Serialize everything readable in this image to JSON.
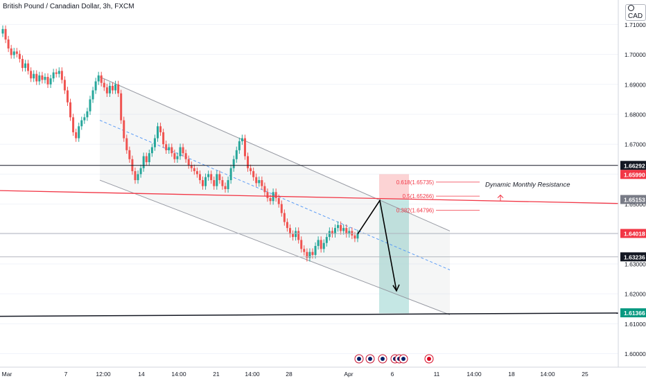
{
  "header": {
    "title": "British Pound / Canadian Dollar, 3h, FXCM",
    "currency": "CAD"
  },
  "colors": {
    "up": "#26a69a",
    "down": "#ef5350",
    "resistance": "#f23645",
    "support": "#131722",
    "channel": "#9598a1",
    "target": "#b2dfdb",
    "stop": "#fccbcd"
  },
  "chart_data": {
    "type": "candlestick",
    "symbol": "GBPCAD",
    "timeframe": "3h",
    "ylim": [
      1.5955,
      1.7182
    ],
    "y_ticks": [
      "1.71000",
      "1.70000",
      "1.69000",
      "1.68000",
      "1.67000",
      "1.66000",
      "1.65000",
      "1.64000",
      "1.63000",
      "1.62000",
      "1.61000",
      "1.60000"
    ],
    "x_ticks": [
      "Mar",
      "7",
      "12:00",
      "14",
      "14:00",
      "21",
      "14:00",
      "28",
      "Apr",
      "6",
      "11",
      "14:00",
      "18",
      "14:00",
      "25"
    ],
    "closes": [
      1.7085,
      1.705,
      1.702,
      1.6998,
      1.701,
      1.7002,
      1.6985,
      1.6955,
      1.697,
      1.6945,
      1.692,
      1.6935,
      1.691,
      1.693,
      1.6915,
      1.6925,
      1.69,
      1.692,
      1.694,
      1.6935,
      1.6945,
      1.6915,
      1.688,
      1.684,
      1.679,
      1.674,
      1.672,
      1.676,
      1.678,
      1.679,
      1.681,
      1.685,
      1.688,
      1.691,
      1.693,
      1.6905,
      1.689,
      1.687,
      1.6895,
      1.688,
      1.69,
      1.687,
      1.678,
      1.672,
      1.668,
      1.665,
      1.661,
      1.658,
      1.66,
      1.662,
      1.666,
      1.664,
      1.667,
      1.669,
      1.672,
      1.676,
      1.674,
      1.67,
      1.668,
      1.669,
      1.667,
      1.665,
      1.666,
      1.669,
      1.667,
      1.665,
      1.663,
      1.662,
      1.661,
      1.66,
      1.658,
      1.656,
      1.659,
      1.66,
      1.658,
      1.656,
      1.66,
      1.658,
      1.656,
      1.655,
      1.658,
      1.662,
      1.665,
      1.668,
      1.671,
      1.672,
      1.666,
      1.662,
      1.661,
      1.659,
      1.657,
      1.658,
      1.656,
      1.654,
      1.652,
      1.651,
      1.654,
      1.652,
      1.65,
      1.647,
      1.644,
      1.642,
      1.64,
      1.639,
      1.641,
      1.638,
      1.635,
      1.634,
      1.632,
      1.634,
      1.633,
      1.636,
      1.638,
      1.635,
      1.637,
      1.639,
      1.641,
      1.64,
      1.642,
      1.643,
      1.641,
      1.642,
      1.64,
      1.641,
      1.6395,
      1.6385,
      1.6402
    ],
    "resistance_line": {
      "label": "Dynamic Monthly Resistance",
      "from": 1.6545,
      "to": 1.6502
    },
    "support_line": {
      "from": 1.6125,
      "to": 1.6136
    },
    "horizontal_lines": [
      1.66292,
      1.64018,
      1.63236
    ],
    "channel": {
      "upper": [
        1.6925,
        1.641
      ],
      "lower": [
        1.658,
        1.613
      ],
      "mid": [
        1.678,
        1.628
      ]
    },
    "fibonacci": [
      {
        "label": "0.618(1.65735)",
        "value": 1.65735
      },
      {
        "label": "0.5(1.65266)",
        "value": 1.65266
      },
      {
        "label": "0.382(1.64796)",
        "value": 1.64796
      }
    ],
    "projection": [
      1.64,
      1.6512,
      1.621
    ],
    "position": {
      "entry": 1.6515,
      "stop": 1.66,
      "target": 1.6135
    },
    "price_labels": [
      {
        "text": "1.66292",
        "value": 1.66292,
        "bg": "#131722"
      },
      {
        "text": "1.65990",
        "value": 1.6599,
        "bg": "#f23645"
      },
      {
        "text": "1.65153",
        "value": 1.65153,
        "bg": "#787b86"
      },
      {
        "text": "1.64018",
        "value": 1.64018,
        "bg": "#f23645"
      },
      {
        "text": "1.63236",
        "value": 1.63236,
        "bg": "#131722"
      },
      {
        "text": "1.61366",
        "value": 1.61366,
        "bg": "#089981"
      }
    ],
    "event_flags": [
      "gbp",
      "gbp",
      "gbp",
      "gbp",
      "gbp",
      "gbp",
      "cad"
    ]
  }
}
